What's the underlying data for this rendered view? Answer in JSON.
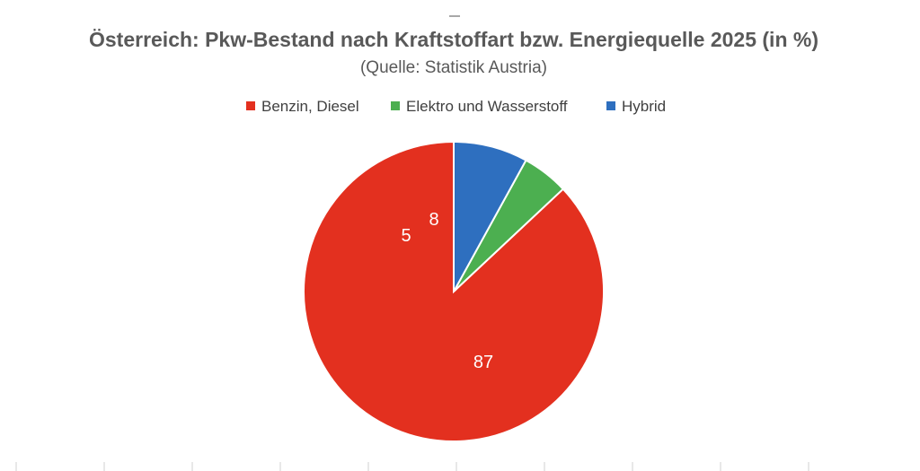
{
  "chart_data": {
    "type": "pie",
    "title": "Österreich: Pkw-Bestand nach Kraftstoffart bzw. Energiequelle 2025 (in %)",
    "subtitle": "(Quelle: Statistik Austria)",
    "legend_position": "top",
    "categories": [
      "Benzin, Diesel",
      "Elektro und Wasserstoff",
      "Hybrid"
    ],
    "values": [
      87,
      5,
      8
    ],
    "data_labels": [
      "87",
      "5",
      "8"
    ],
    "colors": [
      "#e3301f",
      "#4caf50",
      "#2e6fbf"
    ]
  }
}
